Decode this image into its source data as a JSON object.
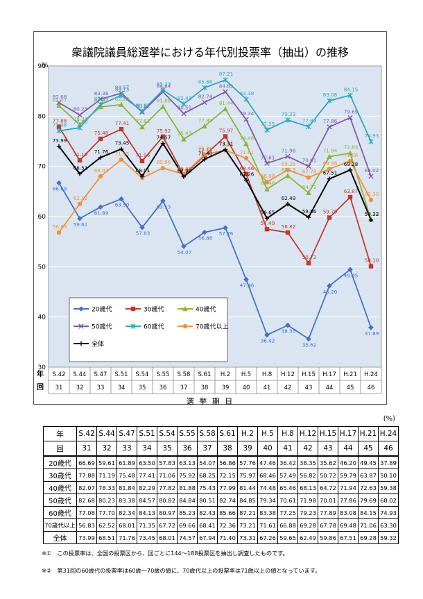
{
  "chart_data": {
    "type": "line",
    "title": "衆議院議員総選挙における年代別投票率（抽出）の推移",
    "ylabel": "%",
    "xlabel": "選 挙 期 日",
    "x_row_label": "年",
    "x_sub_row_label": "回",
    "ylim": [
      30,
      90
    ],
    "yticks": [
      30,
      40,
      50,
      60,
      70,
      80,
      90
    ],
    "grid": true,
    "legend_position": "bottom-left",
    "categories": [
      "S.42",
      "S.44",
      "S.47",
      "S.51",
      "S.54",
      "S.55",
      "S.58",
      "S.61",
      "H.2",
      "H.5",
      "H.8",
      "H.12",
      "H.15",
      "H.17",
      "H.21",
      "H.24"
    ],
    "sessions": [
      "31",
      "32",
      "33",
      "34",
      "35",
      "36",
      "37",
      "38",
      "39",
      "40",
      "41",
      "42",
      "43",
      "44",
      "45",
      "46"
    ],
    "series": [
      {
        "name": "20歳代",
        "color": "#4472c4",
        "marker": "diamond",
        "values": [
          66.69,
          59.61,
          61.89,
          63.5,
          57.83,
          63.13,
          54.07,
          56.86,
          57.76,
          47.46,
          36.42,
          38.35,
          35.62,
          46.2,
          49.45,
          37.89
        ]
      },
      {
        "name": "30歳代",
        "color": "#c0392b",
        "marker": "square",
        "values": [
          77.88,
          71.19,
          75.48,
          77.41,
          71.06,
          75.92,
          68.25,
          72.15,
          75.97,
          68.46,
          57.49,
          56.82,
          50.72,
          59.79,
          63.87,
          50.1
        ]
      },
      {
        "name": "40歳代",
        "color": "#8db33a",
        "marker": "triangle",
        "values": [
          82.07,
          78.33,
          81.84,
          82.29,
          77.82,
          81.88,
          75.43,
          77.99,
          81.44,
          74.48,
          65.46,
          68.13,
          64.72,
          71.94,
          72.63,
          59.38
        ]
      },
      {
        "name": "50歳代",
        "color": "#7c5ba8",
        "marker": "x",
        "values": [
          82.68,
          80.23,
          83.38,
          84.57,
          80.82,
          84.84,
          80.51,
          82.74,
          84.85,
          79.34,
          70.61,
          71.98,
          70.01,
          77.86,
          79.69,
          68.02
        ]
      },
      {
        "name": "60歳代",
        "color": "#2fa6c0",
        "marker": "star",
        "values": [
          77.08,
          77.7,
          82.34,
          84.13,
          80.97,
          85.23,
          82.43,
          85.66,
          87.21,
          83.38,
          77.25,
          79.23,
          77.89,
          83.08,
          84.15,
          74.93
        ]
      },
      {
        "name": "70歳代以上",
        "color": "#f0913a",
        "marker": "circle",
        "values": [
          56.83,
          62.52,
          68.01,
          71.35,
          67.72,
          69.66,
          68.41,
          72.36,
          73.21,
          71.61,
          66.88,
          69.28,
          67.78,
          69.48,
          71.06,
          63.3
        ]
      },
      {
        "name": "全体",
        "color": "#000000",
        "marker": "plus",
        "values": [
          73.99,
          68.51,
          71.76,
          73.45,
          68.01,
          74.57,
          67.94,
          71.4,
          73.31,
          67.26,
          59.65,
          62.49,
          59.86,
          67.51,
          69.28,
          59.32
        ]
      }
    ]
  },
  "table": {
    "unit": "(%)",
    "year_label": "年",
    "session_label": "回",
    "rows": [
      {
        "label": "20歳代",
        "values": [
          "66.69",
          "59.61",
          "61.89",
          "63.50",
          "57.83",
          "63.13",
          "54.07",
          "56.86",
          "57.76",
          "47.46",
          "36.42",
          "38.35",
          "35.62",
          "46.20",
          "49.45",
          "37.89"
        ]
      },
      {
        "label": "30歳代",
        "values": [
          "77.88",
          "71.19",
          "75.48",
          "77.41",
          "71.06",
          "75.92",
          "68.25",
          "72.15",
          "75.97",
          "68.46",
          "57.49",
          "56.82",
          "50.72",
          "59.79",
          "63.87",
          "50.10"
        ]
      },
      {
        "label": "40歳代",
        "values": [
          "82.07",
          "78.33",
          "81.84",
          "82.29",
          "77.82",
          "81.88",
          "75.43",
          "77.99",
          "81.44",
          "74.48",
          "65.46",
          "68.13",
          "64.72",
          "71.94",
          "72.63",
          "59.38"
        ]
      },
      {
        "label": "50歳代",
        "values": [
          "82.68",
          "80.23",
          "83.38",
          "84.57",
          "80.82",
          "84.84",
          "80.51",
          "82.74",
          "84.85",
          "79.34",
          "70.61",
          "71.98",
          "70.01",
          "77.86",
          "79.69",
          "68.02"
        ]
      },
      {
        "label": "60歳代",
        "values": [
          "77.08",
          "77.70",
          "82.34",
          "84.13",
          "80.97",
          "85.23",
          "82.43",
          "85.66",
          "87.21",
          "83.38",
          "77.25",
          "79.23",
          "77.89",
          "83.08",
          "84.15",
          "74.93"
        ]
      },
      {
        "label": "70歳代以上",
        "values": [
          "56.83",
          "62.52",
          "68.01",
          "71.35",
          "67.72",
          "69.66",
          "68.41",
          "72.36",
          "73.21",
          "71.61",
          "66.88",
          "69.28",
          "67.78",
          "69.48",
          "71.06",
          "63.30"
        ]
      },
      {
        "label": "全体",
        "values": [
          "73.99",
          "68.51",
          "71.76",
          "73.45",
          "68.01",
          "74.57",
          "67.94",
          "71.40",
          "73.31",
          "67.26",
          "59.65",
          "62.49",
          "59.86",
          "67.51",
          "69.28",
          "59.32"
        ]
      }
    ]
  },
  "notes": [
    "※①　この投票率は、全国の投票区から、回ごとに144～188投票区を抽出し調査したものです。",
    "※②　第31回の60歳代の投票率は60歳～70歳の値に、70歳代以上の投票率は71歳以上の値となっています。"
  ]
}
